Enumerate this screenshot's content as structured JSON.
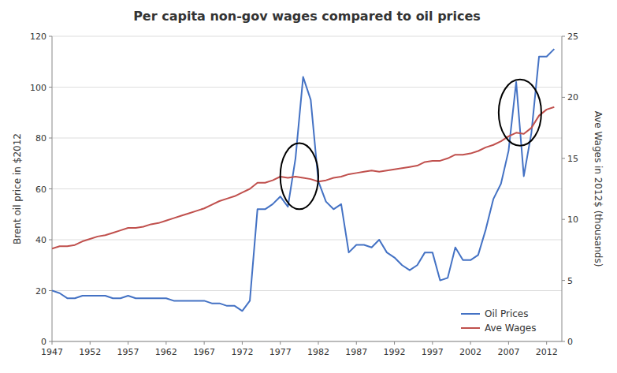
{
  "chart_data": {
    "type": "line",
    "title": "Per capita non-gov wages compared to oil prices",
    "ylabel": "Brent oil price in $2012",
    "y2label": "Ave Wages in 2012$ (thousands)",
    "x": [
      1947,
      1948,
      1949,
      1950,
      1951,
      1952,
      1953,
      1954,
      1955,
      1956,
      1957,
      1958,
      1959,
      1960,
      1961,
      1962,
      1963,
      1964,
      1965,
      1966,
      1967,
      1968,
      1969,
      1970,
      1971,
      1972,
      1973,
      1974,
      1975,
      1976,
      1977,
      1978,
      1979,
      1980,
      1981,
      1982,
      1983,
      1984,
      1985,
      1986,
      1987,
      1988,
      1989,
      1990,
      1991,
      1992,
      1993,
      1994,
      1995,
      1996,
      1997,
      1998,
      1999,
      2000,
      2001,
      2002,
      2003,
      2004,
      2005,
      2006,
      2007,
      2008,
      2009,
      2010,
      2011,
      2012,
      2013
    ],
    "series": [
      {
        "name": "Oil Prices",
        "color": "#4472C4",
        "axis": "y",
        "values": [
          20,
          19,
          17,
          17,
          18,
          18,
          18,
          18,
          17,
          17,
          18,
          17,
          17,
          17,
          17,
          17,
          16,
          16,
          16,
          16,
          16,
          15,
          15,
          14,
          14,
          12,
          16,
          52,
          52,
          54,
          57,
          53,
          72,
          104,
          95,
          63,
          55,
          52,
          54,
          35,
          38,
          38,
          37,
          40,
          35,
          33,
          30,
          28,
          30,
          35,
          35,
          24,
          25,
          37,
          32,
          32,
          34,
          44,
          56,
          62,
          75,
          102,
          65,
          82,
          112,
          112,
          115
        ]
      },
      {
        "name": "Ave Wages",
        "color": "#C0504D",
        "axis": "y2",
        "values": [
          7.6,
          7.8,
          7.8,
          7.9,
          8.2,
          8.4,
          8.6,
          8.7,
          8.9,
          9.1,
          9.3,
          9.3,
          9.4,
          9.6,
          9.7,
          9.9,
          10.1,
          10.3,
          10.5,
          10.7,
          10.9,
          11.2,
          11.5,
          11.7,
          11.9,
          12.2,
          12.5,
          13.0,
          13.0,
          13.2,
          13.5,
          13.4,
          13.5,
          13.4,
          13.3,
          13.1,
          13.2,
          13.4,
          13.5,
          13.7,
          13.8,
          13.9,
          14.0,
          13.9,
          14.0,
          14.1,
          14.2,
          14.3,
          14.4,
          14.7,
          14.8,
          14.8,
          15.0,
          15.3,
          15.3,
          15.4,
          15.6,
          15.9,
          16.1,
          16.4,
          16.8,
          17.1,
          17.0,
          17.5,
          18.5,
          19.0,
          19.2
        ]
      }
    ],
    "xlim": [
      1947,
      2014
    ],
    "xticks": [
      1947,
      1952,
      1957,
      1962,
      1967,
      1972,
      1977,
      1982,
      1987,
      1992,
      1997,
      2002,
      2007,
      2012
    ],
    "ylim": [
      0,
      120
    ],
    "yticks": [
      0,
      20,
      40,
      60,
      80,
      100,
      120
    ],
    "y2lim": [
      0,
      25
    ],
    "y2ticks": [
      0,
      5,
      10,
      15,
      20,
      25
    ],
    "grid": true,
    "legend": "lower right",
    "highlights": [
      {
        "x": 1979.5,
        "y": 65,
        "rx": 2.5,
        "ry": 13,
        "color": "#000000"
      },
      {
        "x": 2008.5,
        "y": 90,
        "rx": 2.8,
        "ry": 13,
        "color": "#000000"
      }
    ]
  }
}
